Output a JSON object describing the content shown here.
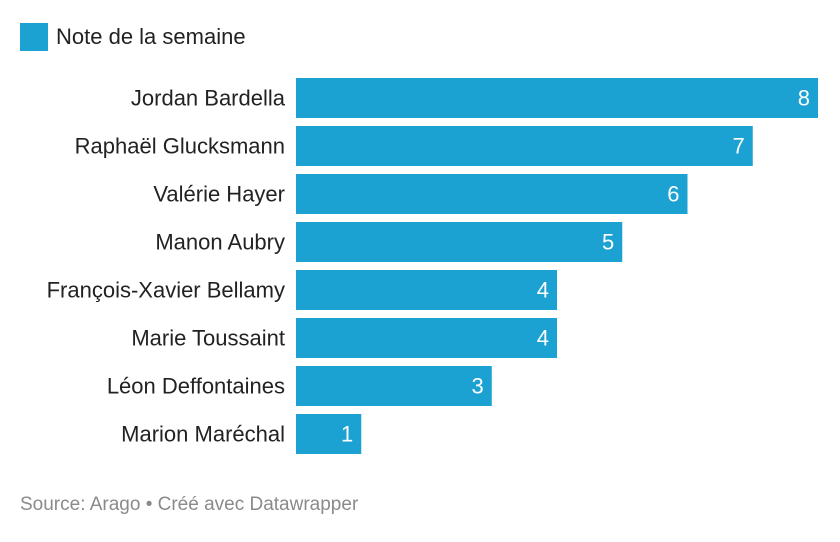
{
  "legend": {
    "label": "Note de la semaine",
    "color": "#1ba1d2"
  },
  "chart_data": {
    "type": "bar",
    "orientation": "horizontal",
    "categories": [
      "Jordan Bardella",
      "Raphaël Glucksmann",
      "Valérie Hayer",
      "Manon Aubry",
      "François-Xavier Bellamy",
      "Marie Toussaint",
      "Léon Deffontaines",
      "Marion Maréchal"
    ],
    "series": [
      {
        "name": "Note de la semaine",
        "values": [
          8,
          7,
          6,
          5,
          4,
          4,
          3,
          1
        ],
        "color": "#1ba1d2"
      }
    ],
    "xlim": [
      0,
      8
    ],
    "grid": false,
    "data_labels": true,
    "legend_position": "top-left"
  },
  "footer": {
    "source": "Source: Arago • Créé avec Datawrapper"
  }
}
